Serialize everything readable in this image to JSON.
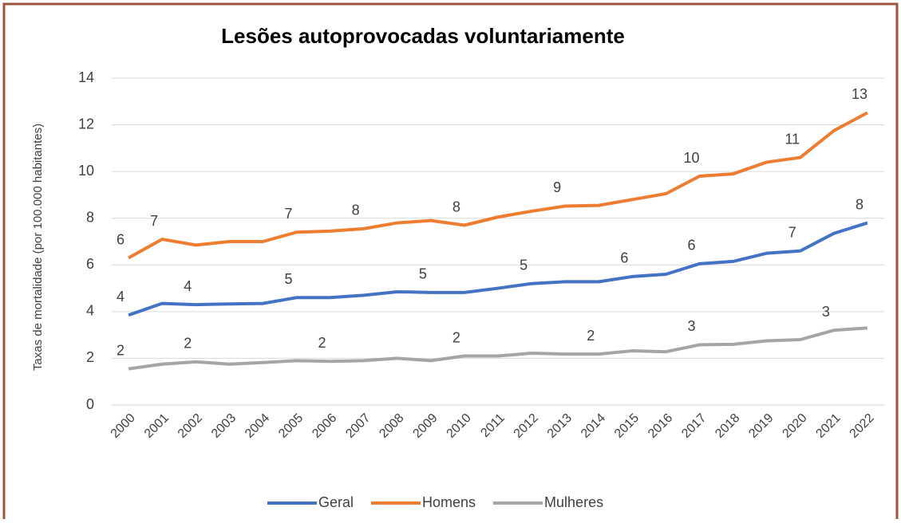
{
  "chart_data": {
    "type": "line",
    "title": "Lesões autoprovocadas voluntariamente",
    "y_label": "Taxas de mortalidade (por 100.000 habitantes)",
    "categories": [
      "2000",
      "2001",
      "2002",
      "2003",
      "2004",
      "2005",
      "2006",
      "2007",
      "2008",
      "2009",
      "2010",
      "2011",
      "2012",
      "2013",
      "2014",
      "2015",
      "2016",
      "2017",
      "2018",
      "2019",
      "2020",
      "2021",
      "2022"
    ],
    "series": [
      {
        "name": "Geral",
        "color": "#4472c4",
        "values": [
          3.85,
          4.35,
          4.3,
          4.33,
          4.35,
          4.6,
          4.6,
          4.7,
          4.85,
          4.82,
          4.82,
          5.0,
          5.2,
          5.28,
          5.28,
          5.5,
          5.6,
          6.05,
          6.15,
          6.5,
          6.6,
          7.35,
          7.8
        ],
        "value_labels": [
          "4",
          null,
          "4",
          null,
          null,
          "5",
          null,
          null,
          null,
          "5",
          null,
          null,
          "5",
          null,
          null,
          "6",
          null,
          "6",
          null,
          null,
          "7",
          null,
          "8"
        ]
      },
      {
        "name": "Homens",
        "color": "#ed7d31",
        "values": [
          6.3,
          7.1,
          6.85,
          7.0,
          7.0,
          7.4,
          7.45,
          7.55,
          7.8,
          7.9,
          7.7,
          8.05,
          8.3,
          8.52,
          8.55,
          8.8,
          9.05,
          9.8,
          9.9,
          10.4,
          10.6,
          11.75,
          12.52
        ],
        "value_labels": [
          "6",
          "7",
          null,
          null,
          null,
          "7",
          null,
          "8",
          null,
          null,
          "8",
          null,
          null,
          "9",
          null,
          null,
          null,
          "10",
          null,
          null,
          "11",
          null,
          "13"
        ]
      },
      {
        "name": "Mulheres",
        "color": "#a5a5a5",
        "values": [
          1.55,
          1.75,
          1.85,
          1.75,
          1.82,
          1.9,
          1.87,
          1.9,
          2.0,
          1.9,
          2.1,
          2.1,
          2.22,
          2.18,
          2.18,
          2.32,
          2.28,
          2.58,
          2.6,
          2.75,
          2.8,
          3.2,
          3.3
        ],
        "value_labels": [
          "2",
          null,
          "2",
          null,
          null,
          null,
          "2",
          null,
          null,
          null,
          "2",
          null,
          null,
          null,
          "2",
          null,
          null,
          "3",
          null,
          null,
          null,
          "3",
          null
        ]
      }
    ],
    "ylim": [
      0,
      14
    ],
    "yticks": [
      0,
      2,
      4,
      6,
      8,
      10,
      12,
      14
    ],
    "grid": true,
    "legend": "bottom"
  }
}
